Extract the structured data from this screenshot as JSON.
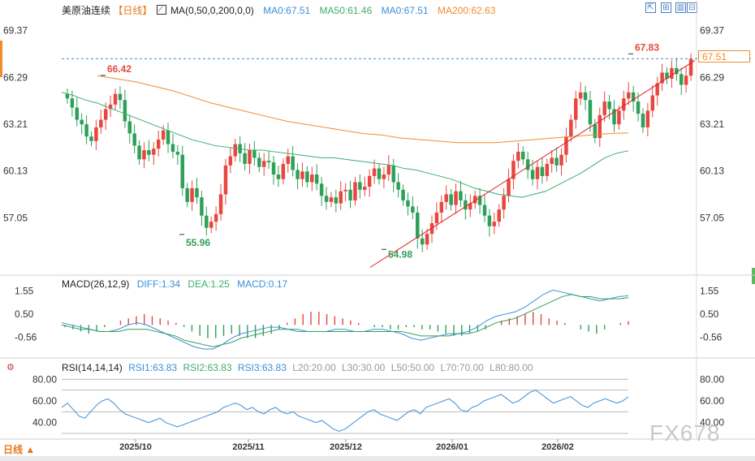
{
  "header": {
    "instrument": "美原油连续",
    "period": "【日线】",
    "ma_indicator": "MA(0,50,0,200,0,0)",
    "ma0a": "MA0:67.51",
    "ma50": "MA50:61.46",
    "ma0b": "MA0:67.51",
    "ma200": "MA200:62.63"
  },
  "macd_header": {
    "name": "MACD(26,12,9)",
    "diff": "DIFF:1.34",
    "dea": "DEA:1.25",
    "macd": "MACD:0.17"
  },
  "rsi_header": {
    "name": "RSI(14,14,14)",
    "rsi1": "RSI1:63.83",
    "rsi2": "RSI2:63.83",
    "rsi3": "RSI3:63.83",
    "l20": "L20:20.00",
    "l30": "L30:30.00",
    "l50": "L50:50.00",
    "l70": "L70:70.00",
    "l80": "L80:80.00"
  },
  "toolbar_icons": [
    "expand-icon",
    "fit-icon",
    "bar-chart-icon",
    "collapse-icon"
  ],
  "current_price": "67.51",
  "period_button": "日线 ▲",
  "watermark": "FX678",
  "colors": {
    "up": "#e8473f",
    "down": "#2ea05a",
    "ma50": "#3cae6e",
    "ma200": "#f08c2c",
    "trend": "#e02020",
    "diff": "#3c8fd8",
    "dea": "#2ea05a",
    "rsi": "#3c8fd8"
  },
  "chart_data": [
    {
      "type": "candlestick",
      "x_ticks": [
        "2025/10",
        "2025/11",
        "2025/12",
        "2026/01",
        "2026/02"
      ],
      "y_ticks": [
        "69.37",
        "66.29",
        "63.21",
        "60.13",
        "57.05"
      ],
      "ylim": [
        53.5,
        70.2
      ],
      "annotations": [
        {
          "label": "66.42",
          "value": 66.42,
          "kind": "high"
        },
        {
          "label": "55.96",
          "value": 55.96,
          "kind": "low"
        },
        {
          "label": "54.98",
          "value": 54.98,
          "kind": "low"
        },
        {
          "label": "67.83",
          "value": 67.83,
          "kind": "high"
        }
      ],
      "last_price": 67.51,
      "close": [
        64.9,
        64.3,
        63.5,
        63.2,
        62.4,
        62.1,
        63.0,
        63.5,
        64.2,
        64.5,
        65.2,
        64.8,
        63.4,
        62.6,
        61.8,
        60.9,
        61.5,
        61.2,
        61.6,
        62.2,
        62.8,
        61.9,
        61.4,
        61.2,
        59.0,
        58.1,
        59.0,
        58.4,
        57.2,
        56.4,
        56.8,
        57.3,
        58.6,
        60.5,
        61.1,
        61.9,
        61.3,
        60.6,
        61.5,
        61.0,
        60.4,
        60.8,
        60.7,
        59.9,
        59.6,
        60.6,
        61.1,
        60.2,
        59.6,
        60.1,
        59.4,
        59.9,
        59.3,
        58.5,
        58.1,
        58.4,
        58.0,
        58.8,
        58.9,
        58.2,
        59.4,
        58.9,
        59.1,
        59.8,
        60.3,
        59.6,
        59.9,
        60.5,
        59.4,
        58.9,
        58.2,
        57.8,
        57.4,
        55.7,
        55.3,
        56.0,
        56.7,
        57.4,
        58.1,
        58.6,
        57.9,
        58.8,
        58.2,
        57.6,
        58.0,
        58.5,
        57.9,
        57.2,
        56.5,
        56.8,
        57.6,
        58.5,
        59.6,
        60.8,
        61.4,
        60.9,
        60.2,
        59.6,
        60.4,
        59.8,
        60.6,
        61.0,
        60.5,
        61.2,
        62.4,
        63.5,
        64.9,
        65.3,
        64.8,
        63.2,
        62.3,
        63.8,
        64.7,
        64.2,
        63.2,
        64.1,
        64.9,
        65.3,
        64.7,
        63.9,
        63.0,
        64.1,
        65.1,
        65.9,
        66.6,
        66.2,
        66.9,
        66.5,
        65.8,
        66.4,
        67.51
      ],
      "ma50": [
        65.3,
        65.1,
        64.8,
        64.6,
        64.3,
        64.0,
        63.7,
        63.4,
        63.1,
        62.8,
        62.5,
        62.2,
        62.0,
        61.8,
        61.7,
        61.6,
        61.5,
        61.5,
        61.4,
        61.3,
        61.2,
        61.1,
        61.0,
        61.0,
        60.9,
        60.8,
        60.7,
        60.6,
        60.5,
        60.3,
        60.2,
        60.0,
        59.8,
        59.6,
        59.3,
        59.0,
        58.8,
        58.6,
        58.5,
        58.4,
        58.6,
        58.8,
        59.2,
        59.6,
        60.0,
        60.5,
        61.0,
        61.3,
        61.46
      ],
      "ma200": [
        66.4,
        66.2,
        66.0,
        65.7,
        65.4,
        65.0,
        64.6,
        64.3,
        64.0,
        63.7,
        63.4,
        63.2,
        63.0,
        62.8,
        62.6,
        62.5,
        62.3,
        62.2,
        62.1,
        62.0,
        62.0,
        62.0,
        62.1,
        62.2,
        62.3,
        62.4,
        62.5,
        62.6,
        62.63
      ],
      "trendline": {
        "from": 53.8,
        "to": 67.4
      }
    },
    {
      "type": "bar",
      "title": "MACD(26,12,9)",
      "y_ticks": [
        "1.55",
        "0.50",
        "-0.56"
      ],
      "ylim": [
        -1.4,
        1.8
      ],
      "macd": [
        -0.1,
        -0.2,
        -0.3,
        -0.4,
        -0.3,
        -0.1,
        0.0,
        0.2,
        0.3,
        0.4,
        0.5,
        0.4,
        0.3,
        0.2,
        0.1,
        -0.1,
        -0.3,
        -0.5,
        -0.6,
        -0.6,
        -0.5,
        -0.4,
        -0.5,
        -0.6,
        -0.6,
        -0.5,
        -0.4,
        -0.2,
        0.1,
        0.3,
        0.5,
        0.6,
        0.6,
        0.5,
        0.4,
        0.3,
        0.2,
        0.1,
        0.0,
        -0.1,
        -0.1,
        -0.2,
        -0.2,
        -0.1,
        -0.1,
        -0.2,
        -0.2,
        -0.3,
        -0.4,
        -0.5,
        -0.5,
        -0.4,
        -0.3,
        -0.2,
        0.0,
        0.2,
        0.3,
        0.4,
        0.5,
        0.6,
        0.5,
        0.3,
        0.2,
        0.1,
        0.0,
        -0.2,
        -0.3,
        -0.4,
        -0.2,
        0.0,
        0.1,
        0.17
      ],
      "diff": [
        0.1,
        0.0,
        -0.1,
        -0.2,
        -0.3,
        -0.3,
        -0.2,
        0.0,
        0.1,
        0.0,
        -0.2,
        -0.4,
        -0.6,
        -0.8,
        -1.0,
        -1.1,
        -1.1,
        -0.9,
        -0.6,
        -0.4,
        -0.3,
        -0.2,
        -0.1,
        -0.1,
        -0.2,
        -0.3,
        -0.3,
        -0.3,
        -0.3,
        -0.2,
        -0.2,
        -0.3,
        -0.3,
        -0.2,
        -0.2,
        -0.3,
        -0.4,
        -0.6,
        -0.7,
        -0.6,
        -0.5,
        -0.4,
        -0.4,
        -0.3,
        -0.1,
        0.2,
        0.4,
        0.5,
        0.6,
        0.8,
        1.1,
        1.4,
        1.6,
        1.5,
        1.4,
        1.3,
        1.2,
        1.1,
        1.2,
        1.3,
        1.34
      ],
      "dea": [
        0.0,
        -0.1,
        -0.2,
        -0.2,
        -0.3,
        -0.3,
        -0.3,
        -0.2,
        -0.2,
        -0.2,
        -0.3,
        -0.4,
        -0.5,
        -0.7,
        -0.8,
        -0.9,
        -1.0,
        -0.9,
        -0.8,
        -0.6,
        -0.5,
        -0.4,
        -0.3,
        -0.2,
        -0.2,
        -0.2,
        -0.3,
        -0.3,
        -0.3,
        -0.3,
        -0.3,
        -0.3,
        -0.3,
        -0.3,
        -0.3,
        -0.3,
        -0.3,
        -0.4,
        -0.5,
        -0.5,
        -0.5,
        -0.5,
        -0.4,
        -0.4,
        -0.3,
        -0.1,
        0.1,
        0.2,
        0.3,
        0.5,
        0.7,
        0.9,
        1.1,
        1.3,
        1.4,
        1.3,
        1.3,
        1.2,
        1.2,
        1.2,
        1.25
      ]
    },
    {
      "type": "line",
      "title": "RSI(14,14,14)",
      "y_ticks": [
        "80.00",
        "60.00",
        "40.00"
      ],
      "ylim": [
        27,
        87
      ],
      "ref_lines": [
        80,
        70,
        50,
        30
      ],
      "rsi": [
        54,
        58,
        52,
        46,
        44,
        50,
        56,
        60,
        62,
        58,
        52,
        48,
        46,
        44,
        42,
        40,
        42,
        44,
        40,
        38,
        36,
        38,
        40,
        42,
        44,
        46,
        48,
        50,
        54,
        56,
        58,
        56,
        52,
        54,
        50,
        48,
        52,
        54,
        50,
        48,
        50,
        46,
        44,
        42,
        40,
        42,
        38,
        34,
        32,
        34,
        38,
        42,
        46,
        50,
        52,
        48,
        46,
        44,
        42,
        46,
        50,
        52,
        48,
        54,
        56,
        58,
        60,
        62,
        58,
        52,
        50,
        54,
        56,
        60,
        62,
        64,
        66,
        62,
        58,
        60,
        64,
        68,
        70,
        66,
        62,
        58,
        60,
        62,
        64,
        60,
        56,
        54,
        58,
        60,
        62,
        60,
        58,
        60,
        63.83
      ]
    }
  ]
}
